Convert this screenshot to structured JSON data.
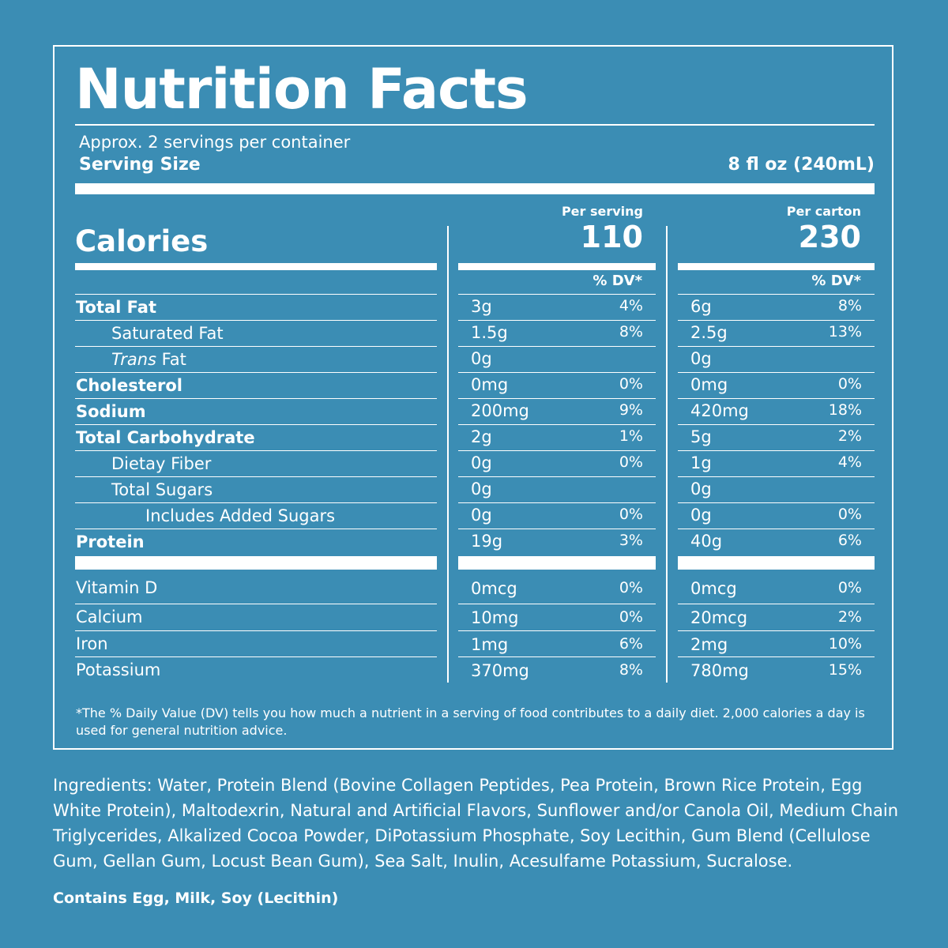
{
  "title": "Nutrition Facts",
  "servings_per_container": "Approx. 2 servings per container",
  "serving_size_label": "Serving Size",
  "serving_size_value": "8 fl oz (240mL)",
  "calories_label": "Calories",
  "per_serving_label": "Per serving",
  "per_carton_label": "Per carton",
  "calories_per_serving": "110",
  "calories_per_carton": "230",
  "dv_header": "% DV*",
  "nutrients": [
    {
      "label": "Total Fat",
      "serving_amt": "3g",
      "serving_dv": "4%",
      "carton_amt": "6g",
      "carton_dv": "8%"
    },
    {
      "label": "Saturated Fat",
      "serving_amt": "1.5g",
      "serving_dv": "8%",
      "carton_amt": "2.5g",
      "carton_dv": "13%"
    },
    {
      "label_italic": "Trans",
      "label": " Fat",
      "serving_amt": "0g",
      "serving_dv": "",
      "carton_amt": "0g",
      "carton_dv": ""
    },
    {
      "label": "Cholesterol",
      "serving_amt": "0mg",
      "serving_dv": "0%",
      "carton_amt": "0mg",
      "carton_dv": "0%"
    },
    {
      "label": "Sodium",
      "serving_amt": "200mg",
      "serving_dv": "9%",
      "carton_amt": "420mg",
      "carton_dv": "18%"
    },
    {
      "label": "Total Carbohydrate",
      "serving_amt": "2g",
      "serving_dv": "1%",
      "carton_amt": "5g",
      "carton_dv": "2%"
    },
    {
      "label": "Dietay Fiber",
      "serving_amt": "0g",
      "serving_dv": "0%",
      "carton_amt": "1g",
      "carton_dv": "4%"
    },
    {
      "label": "Total Sugars",
      "serving_amt": "0g",
      "serving_dv": "",
      "carton_amt": "0g",
      "carton_dv": ""
    },
    {
      "label": "Includes Added Sugars",
      "serving_amt": "0g",
      "serving_dv": "0%",
      "carton_amt": "0g",
      "carton_dv": "0%"
    },
    {
      "label": "Protein",
      "serving_amt": "19g",
      "serving_dv": "3%",
      "carton_amt": "40g",
      "carton_dv": "6%"
    }
  ],
  "vitamins": [
    {
      "label": "Vitamin D",
      "serving_amt": "0mcg",
      "serving_dv": "0%",
      "carton_amt": "0mcg",
      "carton_dv": "0%"
    },
    {
      "label": "Calcium",
      "serving_amt": "10mg",
      "serving_dv": "0%",
      "carton_amt": "20mcg",
      "carton_dv": "2%"
    },
    {
      "label": "Iron",
      "serving_amt": "1mg",
      "serving_dv": "6%",
      "carton_amt": "2mg",
      "carton_dv": "10%"
    },
    {
      "label": "Potassium",
      "serving_amt": "370mg",
      "serving_dv": "8%",
      "carton_amt": "780mg",
      "carton_dv": "15%"
    }
  ],
  "footnote": "*The % Daily Value (DV) tells you how much a nutrient in a serving of food contributes to a daily diet. 2,000 calories a day is used for general nutrition advice.",
  "ingredients": "Ingredients: Water, Protein Blend (Bovine Collagen Peptides, Pea Protein, Brown Rice Protein, Egg White Protein), Maltodexrin, Natural and Artificial Flavors, Sunflower and/or Canola Oil, Medium Chain Triglycerides, Alkalized Cocoa Powder, DiPotassium Phosphate, Soy Lecithin, Gum Blend (Cellulose Gum, Gellan Gum, Locust Bean Gum), Sea Salt, Inulin, Acesulfame Potassium, Sucralose.",
  "contains": "Contains Egg, Milk, Soy (Lecithin)",
  "colors": {
    "background": "#3b8db4",
    "text": "#ffffff"
  }
}
